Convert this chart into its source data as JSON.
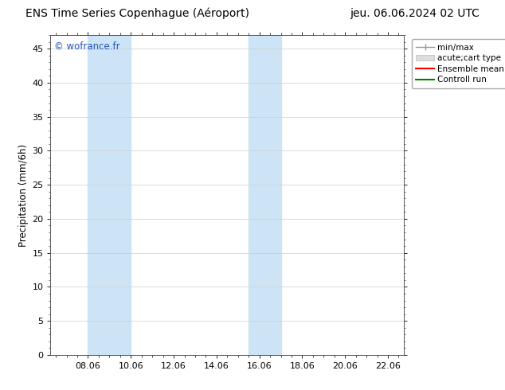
{
  "title_left": "ENS Time Series Copenhague (Aéroport)",
  "title_right": "jeu. 06.06.2024 02 UTC",
  "ylabel": "Precipitation (mm/6h)",
  "watermark": "© wofrance.fr",
  "xmin": 6.25,
  "xmax": 22.75,
  "ymin": 0,
  "ymax": 47,
  "yticks": [
    0,
    5,
    10,
    15,
    20,
    25,
    30,
    35,
    40,
    45
  ],
  "xtick_labels": [
    "08.06",
    "10.06",
    "12.06",
    "14.06",
    "16.06",
    "18.06",
    "20.06",
    "22.06"
  ],
  "xtick_positions": [
    8.0,
    10.0,
    12.0,
    14.0,
    16.0,
    18.0,
    20.0,
    22.0
  ],
  "shaded_bands": [
    {
      "xmin": 8.0,
      "xmax": 10.0,
      "color": "#cce4f5"
    },
    {
      "xmin": 15.5,
      "xmax": 17.0,
      "color": "#cce4f5"
    }
  ],
  "background_color": "#ffffff",
  "plot_bg_color": "#ffffff",
  "grid_color": "#cccccc",
  "title_fontsize": 10,
  "axis_fontsize": 8,
  "watermark_color": "#2255bb",
  "watermark_fontsize": 8.5,
  "ylabel_fontsize": 8.5
}
